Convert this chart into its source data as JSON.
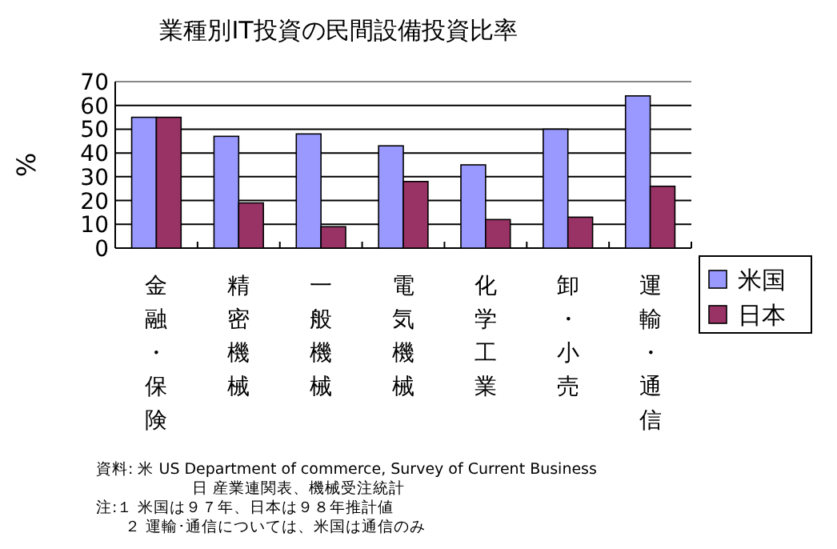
{
  "chart_data": {
    "type": "bar",
    "title": "業種別IT投資の民間設備投資比率",
    "ylabel": "%",
    "categories": [
      "金融・保険",
      "精密機械",
      "一般機械",
      "電気機械",
      "化学工業",
      "卸・小売",
      "運輸・通信"
    ],
    "series": [
      {
        "name": "米国",
        "color": "#9999ff",
        "values": [
          55,
          47,
          48,
          43,
          35,
          50,
          64
        ]
      },
      {
        "name": "日本",
        "color": "#993366",
        "values": [
          55,
          19,
          9,
          28,
          12,
          13,
          26
        ]
      }
    ],
    "ylim": [
      0,
      70
    ],
    "yticks": [
      0,
      10,
      20,
      30,
      40,
      50,
      60,
      70
    ],
    "grid": "y",
    "legend": "right",
    "annotations": [
      "資料:  米   US Department of commerce, Survey of Current Business",
      "日   産業連関表、機械受注統計",
      "注:１  米国は９７年、日本は９８年推計値",
      "２  運輸･通信については、米国は通信のみ"
    ]
  }
}
